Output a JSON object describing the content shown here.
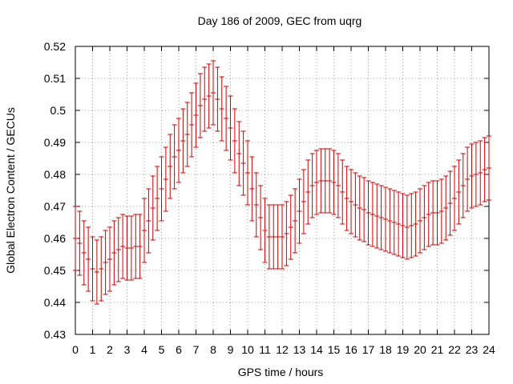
{
  "chart_data": {
    "type": "line",
    "title": "Day 186 of 2009, GEC from uqrg",
    "xlabel": "GPS time / hours",
    "ylabel": "Global Electron Content / GECUs",
    "xlim": [
      0,
      24
    ],
    "ylim": [
      0.43,
      0.52
    ],
    "grid": true,
    "x_ticks": [
      "0",
      "1",
      "2",
      "3",
      "4",
      "5",
      "6",
      "7",
      "8",
      "9",
      "10",
      "11",
      "12",
      "13",
      "14",
      "15",
      "16",
      "17",
      "18",
      "19",
      "20",
      "21",
      "22",
      "23",
      "24"
    ],
    "y_ticks": [
      "0.43",
      "0.44",
      "0.45",
      "0.46",
      "0.47",
      "0.48",
      "0.49",
      "0.5",
      "0.51",
      "0.52"
    ],
    "series": [
      {
        "name": "GEC",
        "color": "#cc0000",
        "error_bar": 0.01,
        "x": [
          0,
          0.25,
          0.5,
          0.75,
          1,
          1.25,
          1.5,
          1.75,
          2,
          2.25,
          2.5,
          2.75,
          3,
          3.25,
          3.5,
          3.75,
          4,
          4.25,
          4.5,
          4.75,
          5,
          5.25,
          5.5,
          5.75,
          6,
          6.25,
          6.5,
          6.75,
          7,
          7.25,
          7.5,
          7.75,
          8,
          8.25,
          8.5,
          8.75,
          9,
          9.25,
          9.5,
          9.75,
          10,
          10.25,
          10.5,
          10.75,
          11,
          11.25,
          11.5,
          11.75,
          12,
          12.25,
          12.5,
          12.75,
          13,
          13.25,
          13.5,
          13.75,
          14,
          14.25,
          14.5,
          14.75,
          15,
          15.25,
          15.5,
          15.75,
          16,
          16.25,
          16.5,
          16.75,
          17,
          17.25,
          17.5,
          17.75,
          18,
          18.25,
          18.5,
          18.75,
          19,
          19.25,
          19.5,
          19.75,
          20,
          20.25,
          20.5,
          20.75,
          21,
          21.25,
          21.5,
          21.75,
          22,
          22.25,
          22.5,
          22.75,
          23,
          23.25,
          23.5,
          23.75,
          24
        ],
        "values": [
          0.46,
          0.4585,
          0.4555,
          0.4535,
          0.4505,
          0.4495,
          0.4505,
          0.4525,
          0.4535,
          0.4555,
          0.4565,
          0.4575,
          0.457,
          0.457,
          0.4575,
          0.4575,
          0.4625,
          0.4655,
          0.4695,
          0.4725,
          0.4755,
          0.4785,
          0.4825,
          0.4855,
          0.4875,
          0.4905,
          0.4925,
          0.4955,
          0.4985,
          0.5015,
          0.5035,
          0.5045,
          0.5055,
          0.5035,
          0.5005,
          0.4975,
          0.4945,
          0.4905,
          0.4865,
          0.4835,
          0.4805,
          0.4755,
          0.4705,
          0.4665,
          0.4625,
          0.4605,
          0.4605,
          0.4605,
          0.4605,
          0.4615,
          0.4635,
          0.4655,
          0.4685,
          0.4715,
          0.4745,
          0.4765,
          0.4775,
          0.478,
          0.478,
          0.478,
          0.4775,
          0.4765,
          0.4745,
          0.4725,
          0.4715,
          0.4705,
          0.4695,
          0.469,
          0.468,
          0.4675,
          0.467,
          0.4665,
          0.466,
          0.4655,
          0.465,
          0.4645,
          0.464,
          0.4635,
          0.464,
          0.4645,
          0.4655,
          0.4665,
          0.4675,
          0.468,
          0.468,
          0.4685,
          0.4695,
          0.471,
          0.4725,
          0.4745,
          0.4765,
          0.4785,
          0.4795,
          0.48,
          0.4805,
          0.4815,
          0.482
        ]
      }
    ]
  }
}
